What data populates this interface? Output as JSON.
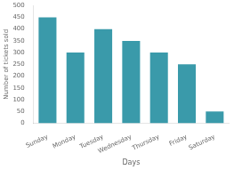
{
  "chart_data": {
    "type": "bar",
    "categories": [
      "Sunday",
      "Monday",
      "Tuesday",
      "Wednesday",
      "Thursday",
      "Friday",
      "Saturday"
    ],
    "values": [
      450,
      300,
      400,
      350,
      300,
      250,
      50
    ],
    "color": "#3a9aaa",
    "ylabel": "Number of tickets sold",
    "xlabel": "Days",
    "ylim": [
      0,
      500
    ],
    "yticks": [
      0,
      50,
      100,
      150,
      200,
      250,
      300,
      350,
      400,
      450,
      500
    ],
    "grid": false
  }
}
